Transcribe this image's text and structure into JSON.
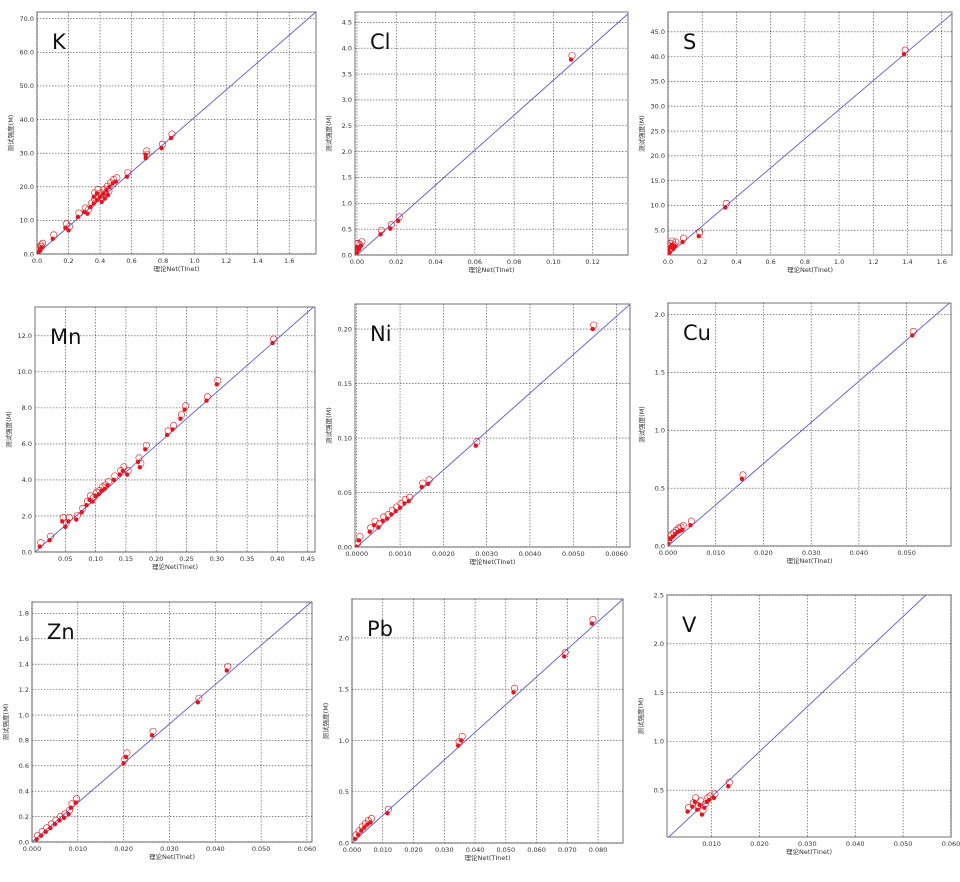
{
  "chart_data": [
    {
      "type": "scatter",
      "title": "K",
      "xlabel": "理论Net(TInet)",
      "ylabel": "测试强度(M)",
      "xlim": [
        0,
        1.77
      ],
      "ylim": [
        0,
        72
      ],
      "grid": true,
      "xticks": [
        "0.0",
        "0.2",
        "0.4",
        "0.6",
        "0.8",
        "1.0",
        "1.2",
        "1.4",
        "1.6"
      ],
      "xtick_values": [
        0,
        0.2,
        0.4,
        0.6,
        0.8,
        1.0,
        1.2,
        1.4,
        1.6
      ],
      "yticks": [
        "0.0",
        "10.0",
        "20.0",
        "30.0",
        "40.0",
        "50.0",
        "60.0",
        "70.0"
      ],
      "ytick_values": [
        0,
        10,
        20,
        30,
        40,
        50,
        60,
        70
      ],
      "fit_line": {
        "slope": 40.7,
        "intercept": 0
      },
      "points": [
        [
          0.01,
          0.5
        ],
        [
          0.02,
          1.5
        ],
        [
          0.03,
          2.0
        ],
        [
          0.02,
          1.0
        ],
        [
          0.1,
          4.5
        ],
        [
          0.18,
          7.8
        ],
        [
          0.2,
          7.0
        ],
        [
          0.26,
          11
        ],
        [
          0.3,
          12.5
        ],
        [
          0.32,
          12
        ],
        [
          0.34,
          14
        ],
        [
          0.36,
          15
        ],
        [
          0.38,
          16
        ],
        [
          0.4,
          17
        ],
        [
          0.42,
          18
        ],
        [
          0.44,
          19
        ],
        [
          0.46,
          20
        ],
        [
          0.48,
          21
        ],
        [
          0.5,
          21.5
        ],
        [
          0.38,
          18
        ],
        [
          0.41,
          15.5
        ],
        [
          0.43,
          16.5
        ],
        [
          0.45,
          17.5
        ],
        [
          0.36,
          17
        ],
        [
          0.57,
          23
        ],
        [
          0.69,
          28.5
        ],
        [
          0.69,
          29.5
        ],
        [
          0.79,
          31.5
        ],
        [
          0.85,
          34.5
        ]
      ]
    },
    {
      "type": "scatter",
      "title": "Cl",
      "xlabel": "理论Net(TInet)",
      "ylabel": "测试强度(M)",
      "xlim": [
        -0.001,
        0.138
      ],
      "ylim": [
        0,
        4.7
      ],
      "grid": true,
      "xticks": [
        "0.00",
        "0.02",
        "0.04",
        "0.06",
        "0.08",
        "0.10",
        "0.12"
      ],
      "xtick_values": [
        0,
        0.02,
        0.04,
        0.06,
        0.08,
        0.1,
        0.12
      ],
      "yticks": [
        "0.0",
        "0.5",
        "1.0",
        "1.5",
        "2.0",
        "2.5",
        "3.0",
        "3.5",
        "4.0",
        "4.5"
      ],
      "ytick_values": [
        0,
        0.5,
        1,
        1.5,
        2,
        2.5,
        3,
        3.5,
        4,
        4.5
      ],
      "fit_line": {
        "slope": 33.8,
        "intercept": 0
      },
      "points": [
        [
          0,
          0.05
        ],
        [
          0,
          0.15
        ],
        [
          0.001,
          0.12
        ],
        [
          0.002,
          0.18
        ],
        [
          -0.0005,
          0.14
        ],
        [
          0.012,
          0.4
        ],
        [
          0.017,
          0.51
        ],
        [
          0.021,
          0.66
        ],
        [
          0.109,
          3.78
        ]
      ]
    },
    {
      "type": "scatter",
      "title": "S",
      "xlabel": "理论Net(TInet)",
      "ylabel": "测试强度(M)",
      "xlim": [
        0,
        1.66
      ],
      "ylim": [
        0,
        49
      ],
      "grid": true,
      "xticks": [
        "0.0",
        "0.2",
        "0.4",
        "0.6",
        "0.8",
        "1.0",
        "1.2",
        "1.4",
        "1.6"
      ],
      "xtick_values": [
        0,
        0.2,
        0.4,
        0.6,
        0.8,
        1.0,
        1.2,
        1.4,
        1.6
      ],
      "yticks": [
        "5.0",
        "10.0",
        "15.0",
        "20.0",
        "25.0",
        "30.0",
        "35.0",
        "40.0",
        "45.0"
      ],
      "ytick_values": [
        5,
        10,
        15,
        20,
        25,
        30,
        35,
        40,
        45
      ],
      "fit_line": {
        "slope": 29.3,
        "intercept": 0
      },
      "points": [
        [
          0.0,
          1.0
        ],
        [
          0.01,
          1.5
        ],
        [
          0.02,
          2.0
        ],
        [
          0.03,
          1.2
        ],
        [
          0.04,
          1.8
        ],
        [
          0.01,
          0.5
        ],
        [
          0.085,
          2.6
        ],
        [
          0.18,
          3.8
        ],
        [
          0.335,
          9.6
        ],
        [
          1.38,
          40.5
        ]
      ]
    },
    {
      "type": "scatter",
      "title": "Mn",
      "xlabel": "理论Net(TInet)",
      "ylabel": "测试强度(M)",
      "xlim": [
        0,
        0.462
      ],
      "ylim": [
        0,
        13.6
      ],
      "grid": true,
      "xticks": [
        "0.05",
        "0.10",
        "0.15",
        "0.20",
        "0.25",
        "0.30",
        "0.35",
        "0.40",
        "0.45"
      ],
      "xtick_values": [
        0.05,
        0.1,
        0.15,
        0.2,
        0.25,
        0.3,
        0.35,
        0.4,
        0.45
      ],
      "yticks": [
        "0.0",
        "2.0",
        "4.0",
        "6.0",
        "8.0",
        "10.0",
        "12.0"
      ],
      "ytick_values": [
        0,
        2,
        4,
        6,
        8,
        10,
        12
      ],
      "fit_line": {
        "slope": 29.6,
        "intercept": 0
      },
      "points": [
        [
          0.008,
          0.3
        ],
        [
          0.024,
          0.65
        ],
        [
          0.045,
          1.7
        ],
        [
          0.05,
          1.4
        ],
        [
          0.055,
          1.7
        ],
        [
          0.068,
          1.8
        ],
        [
          0.077,
          2.2
        ],
        [
          0.085,
          2.6
        ],
        [
          0.09,
          2.9
        ],
        [
          0.095,
          2.8
        ],
        [
          0.1,
          3.1
        ],
        [
          0.105,
          3.2
        ],
        [
          0.11,
          3.4
        ],
        [
          0.115,
          3.5
        ],
        [
          0.12,
          3.7
        ],
        [
          0.13,
          4.0
        ],
        [
          0.14,
          4.3
        ],
        [
          0.145,
          4.5
        ],
        [
          0.152,
          4.3
        ],
        [
          0.17,
          5.0
        ],
        [
          0.173,
          4.7
        ],
        [
          0.182,
          5.7
        ],
        [
          0.218,
          6.5
        ],
        [
          0.227,
          6.8
        ],
        [
          0.24,
          7.4
        ],
        [
          0.247,
          7.9
        ],
        [
          0.283,
          8.4
        ],
        [
          0.3,
          9.3
        ],
        [
          0.392,
          11.6
        ]
      ]
    },
    {
      "type": "scatter",
      "title": "Ni",
      "xlabel": "理论Net(TInet)",
      "ylabel": "测试强度(M)",
      "xlim": [
        -4e-05,
        0.00631
      ],
      "ylim": [
        0,
        0.223
      ],
      "grid": true,
      "xticks": [
        "0.0000",
        "0.0010",
        "0.0020",
        "0.0030",
        "0.0040",
        "0.0050",
        "0.0060"
      ],
      "xtick_values": [
        0,
        0.001,
        0.002,
        0.003,
        0.004,
        0.005,
        0.006
      ],
      "yticks": [
        "0.00",
        "0.05",
        "0.10",
        "0.15",
        "0.20"
      ],
      "ytick_values": [
        0,
        0.05,
        0.1,
        0.15,
        0.2
      ],
      "fit_line": {
        "slope": 35.3,
        "intercept": 0
      },
      "points": [
        [
          0,
          0
        ],
        [
          5e-05,
          0.006
        ],
        [
          0.0003,
          0.014
        ],
        [
          0.0004,
          0.02
        ],
        [
          0.0005,
          0.018
        ],
        [
          0.0006,
          0.024
        ],
        [
          0.0007,
          0.026
        ],
        [
          0.0008,
          0.03
        ],
        [
          0.0009,
          0.033
        ],
        [
          0.001,
          0.036
        ],
        [
          0.0011,
          0.04
        ],
        [
          0.0012,
          0.042
        ],
        [
          0.0015,
          0.055
        ],
        [
          0.00165,
          0.058
        ],
        [
          0.00275,
          0.093
        ],
        [
          0.00545,
          0.2
        ]
      ]
    },
    {
      "type": "scatter",
      "title": "Cu",
      "xlabel": "理论Net(TInet)",
      "ylabel": "测试强度(M)",
      "xlim": [
        0,
        0.0593
      ],
      "ylim": [
        0,
        2.1
      ],
      "grid": true,
      "xticks": [
        "0.000",
        "0.010",
        "0.020",
        "0.030",
        "0.040",
        "0.050"
      ],
      "xtick_values": [
        0,
        0.01,
        0.02,
        0.03,
        0.04,
        0.05
      ],
      "yticks": [
        "0.0",
        "0.5",
        "1.0",
        "1.5",
        "2.0"
      ],
      "ytick_values": [
        0,
        0.5,
        1,
        1.5,
        2
      ],
      "fit_line": {
        "slope": 35.6,
        "intercept": 0
      },
      "points": [
        [
          0,
          0.02
        ],
        [
          0.0005,
          0.06
        ],
        [
          0.001,
          0.08
        ],
        [
          0.0015,
          0.1
        ],
        [
          0.002,
          0.12
        ],
        [
          0.0025,
          0.13
        ],
        [
          0.003,
          0.14
        ],
        [
          0.0047,
          0.18
        ],
        [
          0.0155,
          0.58
        ],
        [
          0.0512,
          1.82
        ]
      ]
    },
    {
      "type": "scatter",
      "title": "Zn",
      "xlabel": "理论Net(TInet)",
      "ylabel": "测试强度(M)",
      "xlim": [
        0,
        0.0611
      ],
      "ylim": [
        0,
        1.89
      ],
      "grid": true,
      "xticks": [
        "0.000",
        "0.010",
        "0.020",
        "0.030",
        "0.040",
        "0.050",
        "0.060"
      ],
      "xtick_values": [
        0,
        0.01,
        0.02,
        0.03,
        0.04,
        0.05,
        0.06
      ],
      "yticks": [
        "0.0",
        "0.2",
        "0.4",
        "0.6",
        "0.8",
        "1.0",
        "1.2",
        "1.4",
        "1.6",
        "1.8"
      ],
      "ytick_values": [
        0,
        0.2,
        0.4,
        0.6,
        0.8,
        1.0,
        1.2,
        1.4,
        1.6,
        1.8
      ],
      "fit_line": {
        "slope": 31.0,
        "intercept": 0
      },
      "points": [
        [
          0.001,
          0.02
        ],
        [
          0.002,
          0.05
        ],
        [
          0.003,
          0.08
        ],
        [
          0.004,
          0.11
        ],
        [
          0.005,
          0.14
        ],
        [
          0.006,
          0.17
        ],
        [
          0.007,
          0.19
        ],
        [
          0.008,
          0.22
        ],
        [
          0.0085,
          0.27
        ],
        [
          0.0095,
          0.31
        ],
        [
          0.02,
          0.62
        ],
        [
          0.0205,
          0.67
        ],
        [
          0.0262,
          0.84
        ],
        [
          0.0362,
          1.1
        ],
        [
          0.0425,
          1.35
        ]
      ]
    },
    {
      "type": "scatter",
      "title": "Pb",
      "xlabel": "理论Net(TInet)",
      "ylabel": "测试强度(M)",
      "xlim": [
        0,
        0.0881
      ],
      "ylim": [
        0,
        2.38
      ],
      "grid": true,
      "xticks": [
        "0.000",
        "0.010",
        "0.020",
        "0.030",
        "0.040",
        "0.050",
        "0.060",
        "0.070",
        "0.080"
      ],
      "xtick_values": [
        0,
        0.01,
        0.02,
        0.03,
        0.04,
        0.05,
        0.06,
        0.07,
        0.08
      ],
      "yticks": [
        "0.0",
        "0.5",
        "1.0",
        "1.5",
        "2.0"
      ],
      "ytick_values": [
        0,
        0.5,
        1,
        1.5,
        2
      ],
      "fit_line": {
        "slope": 27.0,
        "intercept": 0
      },
      "points": [
        [
          0.001,
          0.04
        ],
        [
          0.002,
          0.08
        ],
        [
          0.003,
          0.12
        ],
        [
          0.004,
          0.15
        ],
        [
          0.005,
          0.18
        ],
        [
          0.006,
          0.2
        ],
        [
          0.0115,
          0.29
        ],
        [
          0.0345,
          0.95
        ],
        [
          0.0355,
          1.0
        ],
        [
          0.0525,
          1.47
        ],
        [
          0.069,
          1.82
        ],
        [
          0.078,
          2.14
        ]
      ]
    },
    {
      "type": "scatter",
      "title": "V",
      "xlabel": "理论Net(TInet)",
      "ylabel": "测试强度(M)",
      "xlim": [
        0.0007,
        0.06
      ],
      "ylim": [
        0.02,
        2.5
      ],
      "grid": true,
      "xticks": [
        "0.010",
        "0.020",
        "0.030",
        "0.040",
        "0.050",
        "0.060"
      ],
      "xtick_values": [
        0.01,
        0.02,
        0.03,
        0.04,
        0.05,
        0.06
      ],
      "yticks": [
        "0.5",
        "1.0",
        "1.5",
        "2.0",
        "2.5"
      ],
      "ytick_values": [
        0.5,
        1,
        1.5,
        2,
        2.5
      ],
      "fit_line": {
        "slope": 46.2,
        "intercept": -0.03
      },
      "points": [
        [
          0.005,
          0.28
        ],
        [
          0.006,
          0.33
        ],
        [
          0.0065,
          0.38
        ],
        [
          0.007,
          0.3
        ],
        [
          0.0075,
          0.35
        ],
        [
          0.008,
          0.25
        ],
        [
          0.0085,
          0.32
        ],
        [
          0.009,
          0.38
        ],
        [
          0.0095,
          0.4
        ],
        [
          0.0105,
          0.42
        ],
        [
          0.0135,
          0.54
        ]
      ]
    }
  ],
  "colors": {
    "points": "#e8141c",
    "fit_line": "#5a5ad8",
    "grid": "#444444",
    "frame": "#888888"
  }
}
